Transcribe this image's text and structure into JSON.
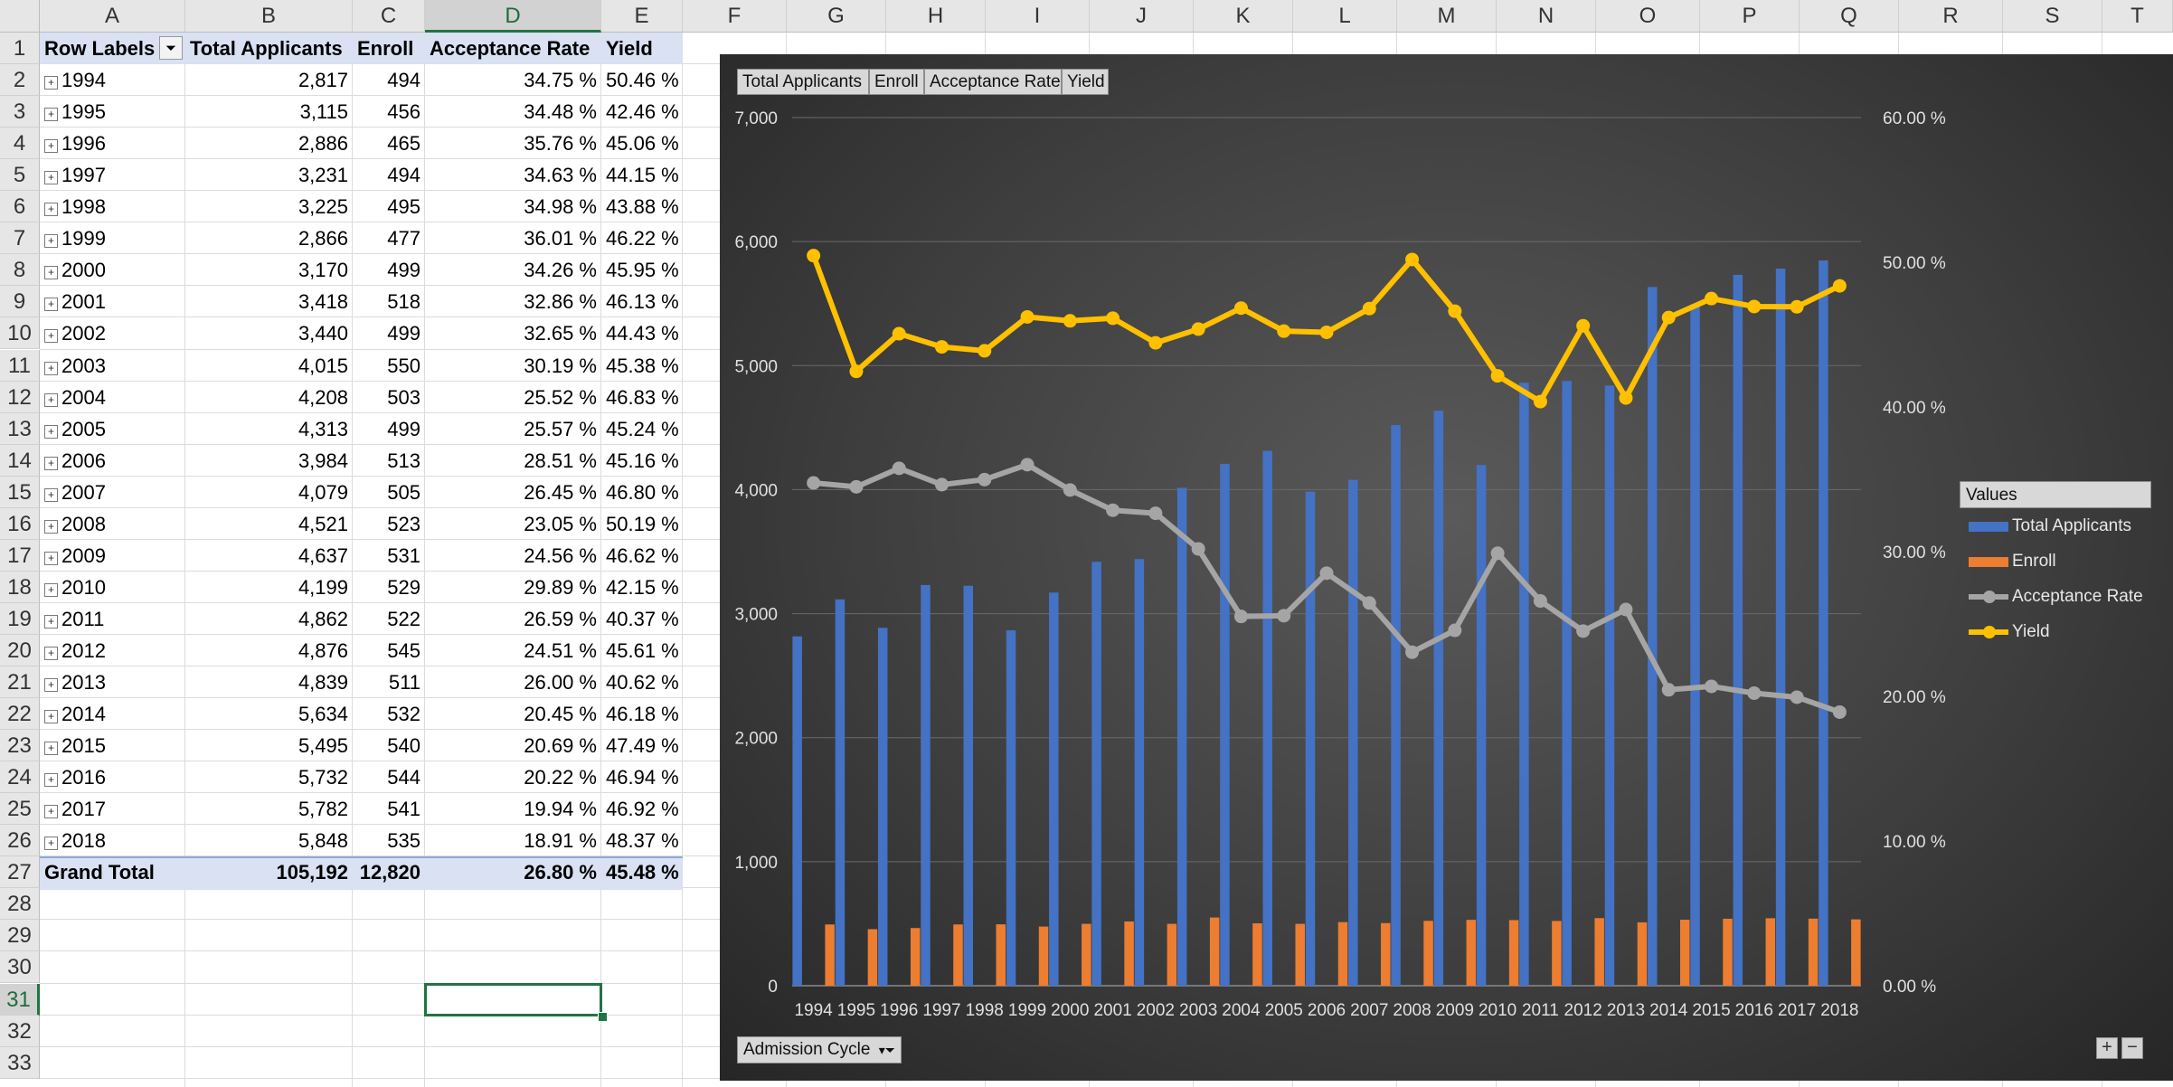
{
  "sheet": {
    "columns": [
      "A",
      "B",
      "C",
      "D",
      "E",
      "F",
      "G",
      "H",
      "I",
      "J",
      "K",
      "L",
      "M",
      "N",
      "O",
      "P",
      "Q",
      "R",
      "S",
      "T"
    ],
    "selected_column": "D",
    "rows": [
      "1",
      "2",
      "3",
      "4",
      "5",
      "6",
      "7",
      "8",
      "9",
      "10",
      "11",
      "12",
      "13",
      "14",
      "15",
      "16",
      "17",
      "18",
      "19",
      "20",
      "21",
      "22",
      "23",
      "24",
      "25",
      "26",
      "27",
      "28",
      "29",
      "30",
      "31",
      "32",
      "33"
    ],
    "selected_row": "31"
  },
  "pivot": {
    "headers": [
      "Row Labels",
      "Total Applicants",
      "Enroll",
      "Acceptance Rate",
      "Yield"
    ],
    "rows": [
      [
        "1994",
        "2,817",
        "494",
        "34.75 %",
        "50.46 %"
      ],
      [
        "1995",
        "3,115",
        "456",
        "34.48 %",
        "42.46 %"
      ],
      [
        "1996",
        "2,886",
        "465",
        "35.76 %",
        "45.06 %"
      ],
      [
        "1997",
        "3,231",
        "494",
        "34.63 %",
        "44.15 %"
      ],
      [
        "1998",
        "3,225",
        "495",
        "34.98 %",
        "43.88 %"
      ],
      [
        "1999",
        "2,866",
        "477",
        "36.01 %",
        "46.22 %"
      ],
      [
        "2000",
        "3,170",
        "499",
        "34.26 %",
        "45.95 %"
      ],
      [
        "2001",
        "3,418",
        "518",
        "32.86 %",
        "46.13 %"
      ],
      [
        "2002",
        "3,440",
        "499",
        "32.65 %",
        "44.43 %"
      ],
      [
        "2003",
        "4,015",
        "550",
        "30.19 %",
        "45.38 %"
      ],
      [
        "2004",
        "4,208",
        "503",
        "25.52 %",
        "46.83 %"
      ],
      [
        "2005",
        "4,313",
        "499",
        "25.57 %",
        "45.24 %"
      ],
      [
        "2006",
        "3,984",
        "513",
        "28.51 %",
        "45.16 %"
      ],
      [
        "2007",
        "4,079",
        "505",
        "26.45 %",
        "46.80 %"
      ],
      [
        "2008",
        "4,521",
        "523",
        "23.05 %",
        "50.19 %"
      ],
      [
        "2009",
        "4,637",
        "531",
        "24.56 %",
        "46.62 %"
      ],
      [
        "2010",
        "4,199",
        "529",
        "29.89 %",
        "42.15 %"
      ],
      [
        "2011",
        "4,862",
        "522",
        "26.59 %",
        "40.37 %"
      ],
      [
        "2012",
        "4,876",
        "545",
        "24.51 %",
        "45.61 %"
      ],
      [
        "2013",
        "4,839",
        "511",
        "26.00 %",
        "40.62 %"
      ],
      [
        "2014",
        "5,634",
        "532",
        "20.45 %",
        "46.18 %"
      ],
      [
        "2015",
        "5,495",
        "540",
        "20.69 %",
        "47.49 %"
      ],
      [
        "2016",
        "5,732",
        "544",
        "20.22 %",
        "46.94 %"
      ],
      [
        "2017",
        "5,782",
        "541",
        "19.94 %",
        "46.92 %"
      ],
      [
        "2018",
        "5,848",
        "535",
        "18.91 %",
        "48.37 %"
      ]
    ],
    "grand_total": [
      "Grand Total",
      "105,192",
      "12,820",
      "26.80 %",
      "45.48 %"
    ]
  },
  "chart_ui": {
    "field_buttons": [
      "Total Applicants",
      "Enroll",
      "Acceptance Rate",
      "Yield"
    ],
    "axis_field_button": "Admission Cycle",
    "legend_title": "Values",
    "plus_label": "+",
    "minus_label": "−"
  },
  "chart_data": {
    "type": "bar",
    "combo": "clustered bars on primary axis, lines with markers on secondary axis",
    "categories": [
      "1994",
      "1995",
      "1996",
      "1997",
      "1998",
      "1999",
      "2000",
      "2001",
      "2002",
      "2003",
      "2004",
      "2005",
      "2006",
      "2007",
      "2008",
      "2009",
      "2010",
      "2011",
      "2012",
      "2013",
      "2014",
      "2015",
      "2016",
      "2017",
      "2018"
    ],
    "series": [
      {
        "name": "Total Applicants",
        "kind": "bar",
        "axis": "primary",
        "color": "#4472c4",
        "values": [
          2817,
          3115,
          2886,
          3231,
          3225,
          2866,
          3170,
          3418,
          3440,
          4015,
          4208,
          4313,
          3984,
          4079,
          4521,
          4637,
          4199,
          4862,
          4876,
          4839,
          5634,
          5495,
          5732,
          5782,
          5848
        ]
      },
      {
        "name": "Enroll",
        "kind": "bar",
        "axis": "primary",
        "color": "#ed7d31",
        "values": [
          494,
          456,
          465,
          494,
          495,
          477,
          499,
          518,
          499,
          550,
          503,
          499,
          513,
          505,
          523,
          531,
          529,
          522,
          545,
          511,
          532,
          540,
          544,
          541,
          535
        ]
      },
      {
        "name": "Acceptance Rate",
        "kind": "line",
        "axis": "secondary",
        "color": "#a5a5a5",
        "values": [
          34.75,
          34.48,
          35.76,
          34.63,
          34.98,
          36.01,
          34.26,
          32.86,
          32.65,
          30.19,
          25.52,
          25.57,
          28.51,
          26.45,
          23.05,
          24.56,
          29.89,
          26.59,
          24.51,
          26.0,
          20.45,
          20.69,
          20.22,
          19.94,
          18.91
        ]
      },
      {
        "name": "Yield",
        "kind": "line",
        "axis": "secondary",
        "color": "#ffc000",
        "values": [
          50.46,
          42.46,
          45.06,
          44.15,
          43.88,
          46.22,
          45.95,
          46.13,
          44.43,
          45.38,
          46.83,
          45.24,
          45.16,
          46.8,
          50.19,
          46.62,
          42.15,
          40.37,
          45.61,
          40.62,
          46.18,
          47.49,
          46.94,
          46.92,
          48.37
        ]
      }
    ],
    "y_ticks": [
      "0",
      "1,000",
      "2,000",
      "3,000",
      "4,000",
      "5,000",
      "6,000",
      "7,000"
    ],
    "y_ticks_values": [
      0,
      1000,
      2000,
      3000,
      4000,
      5000,
      6000,
      7000
    ],
    "ylim": [
      0,
      7000
    ],
    "y2_ticks": [
      "0.00 %",
      "10.00 %",
      "20.00 %",
      "30.00 %",
      "40.00 %",
      "50.00 %",
      "60.00 %"
    ],
    "y2_ticks_values": [
      0,
      10,
      20,
      30,
      40,
      50,
      60
    ],
    "y2lim": [
      0,
      60
    ],
    "grid": true,
    "legend_position": "right"
  }
}
